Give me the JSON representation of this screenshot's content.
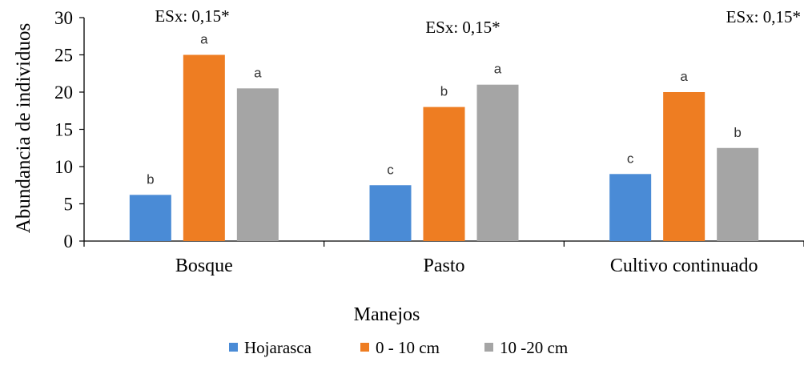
{
  "chart_data": {
    "type": "bar",
    "categories": [
      "Bosque",
      "Pasto",
      "Cultivo continuado"
    ],
    "series": [
      {
        "name": "Hojarasca",
        "values": [
          6.2,
          7.5,
          9.0
        ],
        "letters": [
          "b",
          "c",
          "c"
        ],
        "color": "#4a8bd6"
      },
      {
        "name": "0 - 10 cm",
        "values": [
          25.0,
          18.0,
          20.0
        ],
        "letters": [
          "a",
          "b",
          "a"
        ],
        "color": "#ee7d22"
      },
      {
        "name": "10 -20 cm",
        "values": [
          20.5,
          21.0,
          12.5
        ],
        "letters": [
          "a",
          "a",
          "b"
        ],
        "color": "#a5a5a5"
      }
    ],
    "group_annotations": [
      "ESx: 0,15*",
      "ESx: 0,15*",
      "ESx: 0,15*"
    ],
    "xlabel": "Manejos",
    "ylabel": "Abundancia de individuos",
    "ylim": [
      0,
      30
    ],
    "yticks": [
      0,
      5,
      10,
      15,
      20,
      25,
      30
    ],
    "grid": false,
    "legend_position": "bottom"
  }
}
